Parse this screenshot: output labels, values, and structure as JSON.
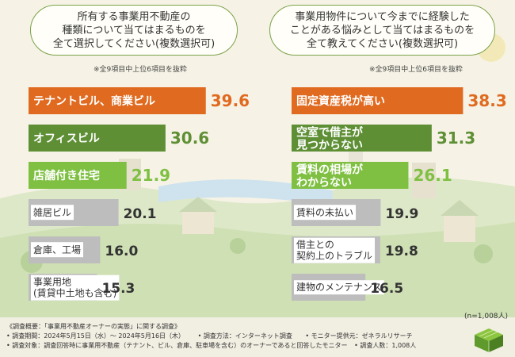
{
  "left": {
    "question": "所有する事業用不動産の\n種類について当てはまるものを\n全て選択してください(複数選択可)",
    "note": "※全9項目中上位6項目を抜粋"
  },
  "right": {
    "question": "事業用物件について今までに経験した\nことがある悩みとして当てはまるものを\n全て教えてください(複数選択可)",
    "note": "※全9項目中上位6項目を抜粋"
  },
  "chart_data": [
    {
      "type": "bar",
      "orientation": "horizontal",
      "unit": "%",
      "categories": [
        "テナントビル、商業ビル",
        "オフィスビル",
        "店舗付き住宅",
        "雑居ビル",
        "倉庫、工場",
        "事業用地\n(賃貸中土地も含む)"
      ],
      "values": [
        39.6,
        30.6,
        21.9,
        20.1,
        16.0,
        15.3
      ],
      "value_labels": [
        "39.6",
        "30.6",
        "21.9",
        "20.1",
        "16.0",
        "15.3"
      ],
      "colors": [
        "#e06a1f",
        "#5e8f35",
        "#7fc043",
        "#bdbdbd",
        "#bdbdbd",
        "#bdbdbd"
      ],
      "value_colors": [
        "#e06a1f",
        "#5e8f35",
        "#7fc043",
        "#333333",
        "#333333",
        "#333333"
      ]
    },
    {
      "type": "bar",
      "orientation": "horizontal",
      "unit": "%",
      "categories": [
        "固定資産税が高い",
        "空室で借主が\n見つからない",
        "賃料の相場が\nわからない",
        "賃料の未払い",
        "借主との\n契約上のトラブル",
        "建物のメンテナンス"
      ],
      "values": [
        38.3,
        31.3,
        26.1,
        19.9,
        19.8,
        16.5
      ],
      "value_labels": [
        "38.3",
        "31.3",
        "26.1",
        "19.9",
        "19.8",
        "16.5"
      ],
      "colors": [
        "#e06a1f",
        "#5e8f35",
        "#7fc043",
        "#bdbdbd",
        "#bdbdbd",
        "#bdbdbd"
      ],
      "value_colors": [
        "#e06a1f",
        "#5e8f35",
        "#7fc043",
        "#333333",
        "#333333",
        "#333333"
      ]
    }
  ],
  "sample": "(n=1,008人)",
  "footer": {
    "line1": "《調査概要：「事業用不動産オーナーの実態」に関する調査》",
    "line2a": "• 調査期間：2024年5月15日（水）～ 2024年5月16日（木）",
    "line2b": "• 調査方法：インターネット調査",
    "line2c": "• モニター提供元：ゼネラルリサーチ",
    "line3a": "• 調査対象：調査回答時に事業用不動産（テナント、ビル、倉庫、駐車場を含む）のオーナーであると回答したモニター",
    "line3b": "• 調査人数：1,008人"
  }
}
